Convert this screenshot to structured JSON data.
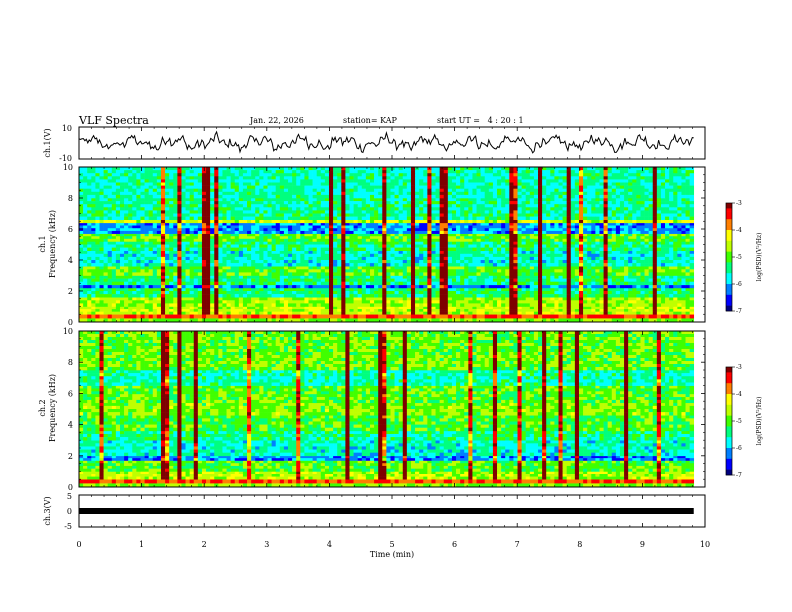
{
  "header": {
    "title": "VLF Spectra",
    "date": "Jan. 22, 2026",
    "station": "station= KAP",
    "start_ut": "start UT =   4 : 20 : 1"
  },
  "colors": {
    "axis": "#000000",
    "trace": "#000000",
    "colormap": [
      "#00007f",
      "#0000ff",
      "#007fff",
      "#00ffff",
      "#00ff7f",
      "#40ff00",
      "#bfff00",
      "#ffff00",
      "#ff7f00",
      "#ff0000",
      "#7f0000"
    ]
  },
  "chart_data": [
    {
      "id": "ch1-waveform",
      "type": "line",
      "ylabel": "ch.1(V)",
      "ylim": [
        -10,
        10
      ],
      "yticks": [
        "10",
        "-10"
      ],
      "xlim": [
        0,
        10
      ],
      "description_values": "continuous waveform oscillating between about -6 and 6 V"
    },
    {
      "id": "ch1-spectrogram",
      "type": "heatmap",
      "ylabel_line1": "ch.1",
      "ylabel_line2": "Frequency (kHz)",
      "ylim": [
        0,
        10
      ],
      "yticks": [
        "0",
        "2",
        "4",
        "6",
        "8",
        "10"
      ],
      "xlim": [
        0,
        10
      ],
      "colorbar": {
        "label": "log(PSD)(V²/Hz)",
        "range": [
          -7,
          -3
        ],
        "ticks": [
          "-3",
          "-4",
          "-5",
          "-6",
          "-7"
        ]
      },
      "bands_khz": [
        {
          "lo": 0.0,
          "hi": 0.25,
          "level": 0.55
        },
        {
          "lo": 0.25,
          "hi": 0.5,
          "level": 0.85
        },
        {
          "lo": 0.5,
          "hi": 1.0,
          "level": 0.62
        },
        {
          "lo": 1.0,
          "hi": 1.6,
          "level": 0.58
        },
        {
          "lo": 1.6,
          "hi": 2.2,
          "level": 0.42
        },
        {
          "lo": 2.2,
          "hi": 2.4,
          "level": 0.18
        },
        {
          "lo": 2.4,
          "hi": 3.0,
          "level": 0.4
        },
        {
          "lo": 3.0,
          "hi": 3.6,
          "level": 0.5
        },
        {
          "lo": 3.6,
          "hi": 4.6,
          "level": 0.34
        },
        {
          "lo": 4.6,
          "hi": 5.2,
          "level": 0.4
        },
        {
          "lo": 5.2,
          "hi": 5.7,
          "level": 0.52
        },
        {
          "lo": 5.7,
          "hi": 6.4,
          "level": 0.22
        },
        {
          "lo": 6.4,
          "hi": 6.6,
          "level": 0.62
        },
        {
          "lo": 6.6,
          "hi": 8.0,
          "level": 0.38
        },
        {
          "lo": 8.0,
          "hi": 10.0,
          "level": 0.36
        }
      ]
    },
    {
      "id": "ch2-spectrogram",
      "type": "heatmap",
      "ylabel_line1": "ch.2",
      "ylabel_line2": "Frequency (kHz)",
      "ylim": [
        0,
        10
      ],
      "yticks": [
        "0",
        "2",
        "4",
        "6",
        "8",
        "10"
      ],
      "xlim": [
        0,
        10
      ],
      "colorbar": {
        "label": "log(PSD)(V²/Hz)",
        "range": [
          -7,
          -3
        ],
        "ticks": [
          "-3",
          "-4",
          "-5",
          "-6",
          "-7"
        ]
      },
      "bands_khz": [
        {
          "lo": 0.0,
          "hi": 0.25,
          "level": 0.55
        },
        {
          "lo": 0.25,
          "hi": 0.5,
          "level": 0.85
        },
        {
          "lo": 0.5,
          "hi": 1.0,
          "level": 0.6
        },
        {
          "lo": 1.0,
          "hi": 1.7,
          "level": 0.5
        },
        {
          "lo": 1.7,
          "hi": 2.0,
          "level": 0.2
        },
        {
          "lo": 2.0,
          "hi": 3.0,
          "level": 0.34
        },
        {
          "lo": 3.0,
          "hi": 3.6,
          "level": 0.4
        },
        {
          "lo": 3.6,
          "hi": 4.6,
          "level": 0.48
        },
        {
          "lo": 4.6,
          "hi": 5.4,
          "level": 0.55
        },
        {
          "lo": 5.4,
          "hi": 6.5,
          "level": 0.5
        },
        {
          "lo": 6.5,
          "hi": 7.5,
          "level": 0.36
        },
        {
          "lo": 7.5,
          "hi": 10.0,
          "level": 0.52
        }
      ]
    },
    {
      "id": "ch3-waveform",
      "type": "line",
      "ylabel": "ch.3(V)",
      "ylim": [
        -5,
        5
      ],
      "yticks": [
        "5",
        "0",
        "-5"
      ],
      "xlim": [
        0,
        10
      ],
      "constant_value": 0
    }
  ],
  "xaxis": {
    "label": "Time (min)",
    "ticks": [
      "0",
      "1",
      "2",
      "3",
      "4",
      "5",
      "6",
      "7",
      "8",
      "9",
      "10"
    ],
    "range": [
      0,
      10
    ],
    "data_extent": 9.82
  }
}
